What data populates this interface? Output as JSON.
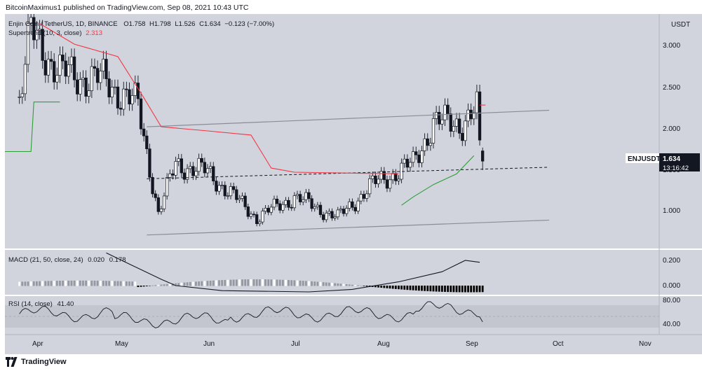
{
  "header": {
    "published": "BitcoinMaximus1 published on TradingView.com, Sep 08, 2021 10:43 UTC"
  },
  "legend": {
    "symbol": "Enjin Coin / TetherUS, 1D, BINANCE",
    "open_label": "O",
    "open": "1.758",
    "high_label": "H",
    "high": "1.798",
    "low_label": "L",
    "low": "1.526",
    "close_label": "C",
    "close": "1.634",
    "change": "−0.123 (−7.00%)",
    "supertrend": "Supertrend (10, 3, close)",
    "supertrend_value": "2.313"
  },
  "price_axis": {
    "unit": "USDT",
    "ticks": [
      "3.000",
      "2.500",
      "2.000",
      "1.500",
      "1.000"
    ]
  },
  "price_tag": {
    "symbol": "ENJUSDT",
    "value": "1.634",
    "countdown": "13:16:42"
  },
  "macd": {
    "label": "MACD (21, 50, close, 24)",
    "v1": "0.020",
    "v2": "0.178",
    "ticks": [
      "0.200",
      "0.000"
    ]
  },
  "rsi": {
    "label": "RSI (14, close)",
    "value": "41.40",
    "ticks": [
      "80.00",
      "40.00"
    ]
  },
  "time_axis": [
    "Apr",
    "May",
    "Jun",
    "Jul",
    "Aug",
    "Sep",
    "Oct",
    "Nov"
  ],
  "footer": {
    "brand": "TradingView"
  },
  "colors": {
    "background": "#d1d4dc",
    "candle": "#131722",
    "candle_hollow": "#ffffff",
    "supertrend_down": "#f23645",
    "supertrend_up": "#2e9e38",
    "channel": "#8a8d96",
    "macd_line": "#131722",
    "hist_pos": "#9598a1",
    "hist_neg": "#000000"
  },
  "chart_data": {
    "type": "candlestick",
    "x_range": [
      "2021-03-27",
      "2021-11-08"
    ],
    "ylim": [
      0.8,
      3.3
    ],
    "candles_sample": [
      {
        "date": "2021-04-01",
        "close": 2.4
      },
      {
        "date": "2021-04-05",
        "close": 3.2
      },
      {
        "date": "2021-04-15",
        "close": 2.7
      },
      {
        "date": "2021-05-01",
        "close": 2.6
      },
      {
        "date": "2021-05-12",
        "close": 2.3
      },
      {
        "date": "2021-05-19",
        "close": 1.0
      },
      {
        "date": "2021-05-25",
        "close": 1.6
      },
      {
        "date": "2021-06-05",
        "close": 1.5
      },
      {
        "date": "2021-06-22",
        "close": 0.95
      },
      {
        "date": "2021-07-05",
        "close": 1.2
      },
      {
        "date": "2021-07-20",
        "close": 0.95
      },
      {
        "date": "2021-08-01",
        "close": 1.35
      },
      {
        "date": "2021-08-15",
        "close": 1.6
      },
      {
        "date": "2021-08-22",
        "close": 2.1
      },
      {
        "date": "2021-09-01",
        "close": 2.1
      },
      {
        "date": "2021-09-06",
        "close": 2.25
      },
      {
        "date": "2021-09-07",
        "close": 1.76
      },
      {
        "date": "2021-09-08",
        "open": 1.758,
        "high": 1.798,
        "low": 1.526,
        "close": 1.634
      }
    ],
    "channel_upper": [
      [
        "2021-05-15",
        2.05
      ],
      [
        "2021-10-01",
        2.25
      ]
    ],
    "channel_lower": [
      [
        "2021-05-15",
        0.74
      ],
      [
        "2021-10-01",
        0.92
      ]
    ],
    "channel_mid_dashed": [
      [
        "2021-05-15",
        1.42
      ],
      [
        "2021-10-01",
        1.56
      ]
    ],
    "supertrend": {
      "current": 2.313
    },
    "macd": {
      "ylim": [
        -0.08,
        0.28
      ]
    },
    "rsi": {
      "ylim": [
        20,
        85
      ],
      "last": 41.4
    }
  }
}
